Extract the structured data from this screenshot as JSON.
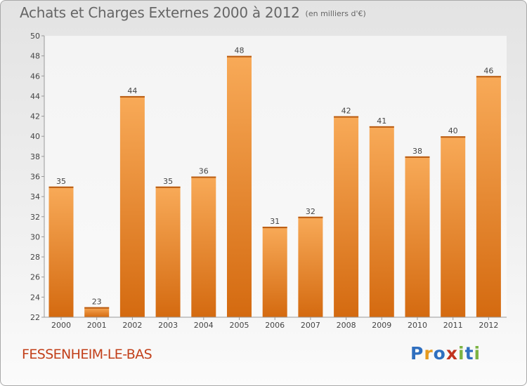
{
  "title": "Achats et Charges Externes 2000 à 2012",
  "subtitle": "(en milliers d'€)",
  "town": "FESSENHEIM-LE-BAS",
  "logo": {
    "letters": [
      "P",
      "r",
      "o",
      "x",
      "i",
      "t",
      "i"
    ],
    "colors": [
      "#2f6fbf",
      "#e69a1f",
      "#2f6fbf",
      "#c2331f",
      "#7cb342",
      "#2f6fbf",
      "#7cb342"
    ]
  },
  "colors": {
    "bar_light": "#f8aa58",
    "bar_dark": "#d46a10",
    "town": "#c2401a"
  },
  "chart_data": {
    "type": "bar",
    "categories": [
      "2000",
      "2001",
      "2002",
      "2003",
      "2004",
      "2005",
      "2006",
      "2007",
      "2008",
      "2009",
      "2010",
      "2011",
      "2012"
    ],
    "values": [
      35,
      23,
      44,
      35,
      36,
      48,
      31,
      32,
      42,
      41,
      38,
      40,
      46
    ],
    "ylim": [
      22,
      50
    ],
    "yticks": [
      22,
      24,
      26,
      28,
      30,
      32,
      34,
      36,
      38,
      40,
      42,
      44,
      46,
      48,
      50
    ],
    "grid": false,
    "legend": "none"
  }
}
